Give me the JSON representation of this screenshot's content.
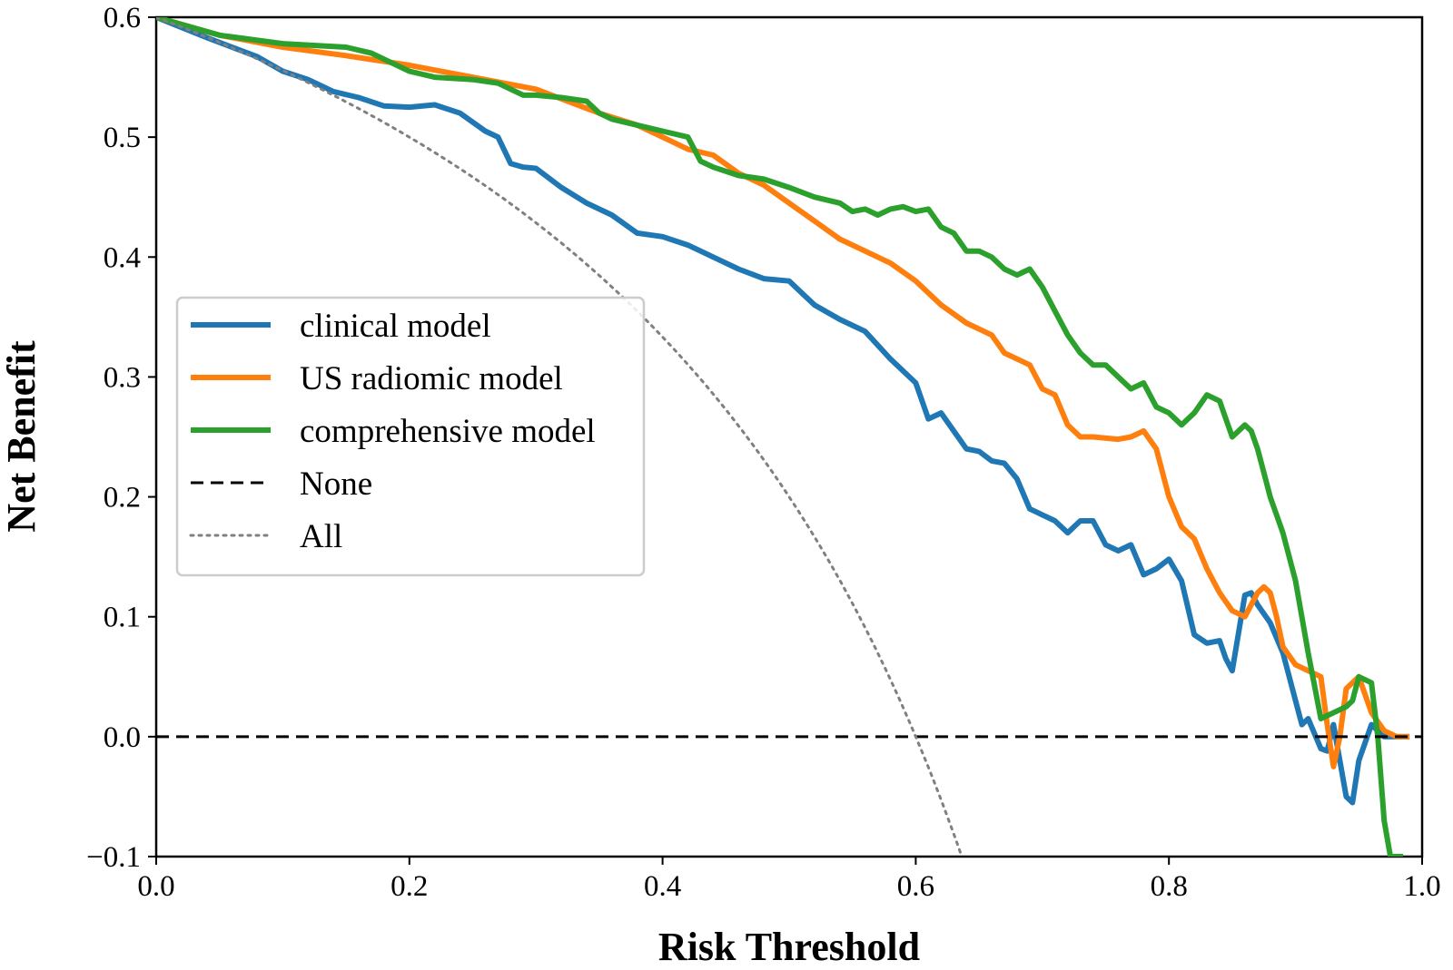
{
  "chart_data": {
    "type": "line",
    "title": "",
    "xlabel": "Risk Threshold",
    "ylabel": "Net Benefit",
    "xlim": [
      0.0,
      1.0
    ],
    "ylim": [
      -0.1,
      0.6
    ],
    "x_ticks": [
      "0.0",
      "0.2",
      "0.4",
      "0.6",
      "0.8",
      "1.0"
    ],
    "y_ticks": [
      "−0.1",
      "0.0",
      "0.1",
      "0.2",
      "0.3",
      "0.4",
      "0.5",
      "0.6"
    ],
    "legend_position": "center-left",
    "grid": false,
    "series": [
      {
        "name": "clinical model",
        "color": "#1f77b4",
        "style": "solid",
        "x": [
          0.0,
          0.04,
          0.08,
          0.1,
          0.12,
          0.14,
          0.16,
          0.18,
          0.2,
          0.22,
          0.24,
          0.26,
          0.27,
          0.28,
          0.29,
          0.3,
          0.32,
          0.34,
          0.36,
          0.38,
          0.4,
          0.42,
          0.44,
          0.46,
          0.48,
          0.5,
          0.52,
          0.54,
          0.56,
          0.58,
          0.6,
          0.61,
          0.62,
          0.63,
          0.64,
          0.65,
          0.66,
          0.67,
          0.68,
          0.69,
          0.7,
          0.71,
          0.72,
          0.73,
          0.74,
          0.75,
          0.76,
          0.77,
          0.78,
          0.79,
          0.8,
          0.81,
          0.82,
          0.83,
          0.84,
          0.845,
          0.85,
          0.86,
          0.865,
          0.87,
          0.88,
          0.89,
          0.9,
          0.905,
          0.91,
          0.92,
          0.925,
          0.93,
          0.94,
          0.945,
          0.95,
          0.96,
          0.965,
          0.97,
          0.98,
          0.985,
          0.99
        ],
        "values": [
          0.6,
          0.583,
          0.567,
          0.555,
          0.548,
          0.538,
          0.533,
          0.526,
          0.525,
          0.527,
          0.52,
          0.505,
          0.5,
          0.478,
          0.475,
          0.474,
          0.458,
          0.445,
          0.435,
          0.42,
          0.417,
          0.41,
          0.4,
          0.39,
          0.382,
          0.38,
          0.36,
          0.348,
          0.338,
          0.315,
          0.295,
          0.265,
          0.27,
          0.255,
          0.24,
          0.238,
          0.23,
          0.228,
          0.215,
          0.19,
          0.185,
          0.18,
          0.17,
          0.18,
          0.18,
          0.16,
          0.155,
          0.16,
          0.135,
          0.14,
          0.148,
          0.13,
          0.085,
          0.078,
          0.08,
          0.065,
          0.055,
          0.118,
          0.12,
          0.11,
          0.095,
          0.07,
          0.03,
          0.01,
          0.015,
          -0.01,
          -0.012,
          0.01,
          -0.05,
          -0.055,
          -0.02,
          0.01,
          0.005,
          0.0,
          0.0,
          0.0,
          0.0
        ]
      },
      {
        "name": "US radiomic model",
        "color": "#ff7f0e",
        "style": "solid",
        "x": [
          0.0,
          0.05,
          0.1,
          0.15,
          0.2,
          0.25,
          0.3,
          0.35,
          0.38,
          0.4,
          0.42,
          0.44,
          0.46,
          0.48,
          0.5,
          0.52,
          0.54,
          0.56,
          0.58,
          0.6,
          0.62,
          0.64,
          0.66,
          0.67,
          0.68,
          0.69,
          0.7,
          0.71,
          0.72,
          0.73,
          0.74,
          0.76,
          0.77,
          0.78,
          0.79,
          0.8,
          0.81,
          0.82,
          0.83,
          0.84,
          0.85,
          0.86,
          0.87,
          0.875,
          0.88,
          0.885,
          0.89,
          0.9,
          0.91,
          0.92,
          0.925,
          0.93,
          0.935,
          0.94,
          0.945,
          0.95,
          0.96,
          0.97,
          0.98,
          0.99
        ],
        "values": [
          0.6,
          0.585,
          0.575,
          0.568,
          0.56,
          0.55,
          0.54,
          0.52,
          0.51,
          0.5,
          0.49,
          0.485,
          0.47,
          0.46,
          0.445,
          0.43,
          0.415,
          0.405,
          0.395,
          0.38,
          0.36,
          0.345,
          0.335,
          0.32,
          0.315,
          0.31,
          0.29,
          0.285,
          0.26,
          0.25,
          0.25,
          0.248,
          0.25,
          0.255,
          0.24,
          0.2,
          0.175,
          0.165,
          0.14,
          0.12,
          0.105,
          0.1,
          0.12,
          0.125,
          0.12,
          0.1,
          0.075,
          0.06,
          0.055,
          0.05,
          0.01,
          -0.025,
          0.0,
          0.04,
          0.045,
          0.05,
          0.02,
          0.005,
          0.0,
          0.0
        ]
      },
      {
        "name": "comprehensive model",
        "color": "#2ca02c",
        "style": "solid",
        "x": [
          0.0,
          0.05,
          0.1,
          0.15,
          0.17,
          0.19,
          0.2,
          0.22,
          0.25,
          0.27,
          0.29,
          0.3,
          0.32,
          0.34,
          0.35,
          0.36,
          0.38,
          0.4,
          0.42,
          0.43,
          0.44,
          0.46,
          0.48,
          0.5,
          0.52,
          0.54,
          0.55,
          0.56,
          0.57,
          0.58,
          0.59,
          0.6,
          0.61,
          0.62,
          0.63,
          0.64,
          0.65,
          0.66,
          0.67,
          0.68,
          0.69,
          0.7,
          0.71,
          0.72,
          0.73,
          0.74,
          0.75,
          0.76,
          0.77,
          0.78,
          0.79,
          0.8,
          0.81,
          0.82,
          0.83,
          0.84,
          0.845,
          0.85,
          0.855,
          0.86,
          0.865,
          0.87,
          0.875,
          0.88,
          0.89,
          0.9,
          0.91,
          0.92,
          0.93,
          0.94,
          0.945,
          0.95,
          0.96,
          0.965,
          0.97,
          0.975,
          0.98,
          0.985
        ],
        "values": [
          0.6,
          0.585,
          0.578,
          0.575,
          0.57,
          0.56,
          0.555,
          0.55,
          0.548,
          0.545,
          0.535,
          0.535,
          0.533,
          0.53,
          0.52,
          0.515,
          0.51,
          0.505,
          0.5,
          0.48,
          0.475,
          0.468,
          0.465,
          0.458,
          0.45,
          0.445,
          0.438,
          0.44,
          0.435,
          0.44,
          0.442,
          0.438,
          0.44,
          0.425,
          0.42,
          0.405,
          0.405,
          0.4,
          0.39,
          0.385,
          0.39,
          0.375,
          0.355,
          0.335,
          0.32,
          0.31,
          0.31,
          0.3,
          0.29,
          0.295,
          0.275,
          0.27,
          0.26,
          0.27,
          0.285,
          0.28,
          0.265,
          0.25,
          0.255,
          0.26,
          0.255,
          0.24,
          0.22,
          0.2,
          0.17,
          0.13,
          0.07,
          0.015,
          0.02,
          0.025,
          0.03,
          0.05,
          0.045,
          0.0,
          -0.07,
          -0.1,
          -0.1,
          -0.1
        ]
      },
      {
        "name": "None",
        "color": "#000000",
        "style": "dashed",
        "x": [
          0.0,
          1.0
        ],
        "values": [
          0.0,
          0.0
        ]
      },
      {
        "name": "All",
        "color": "#808080",
        "style": "dotted",
        "formula": "0.6 - 0.4*t/(1-t)",
        "x_range": [
          0.0,
          0.6364
        ]
      }
    ]
  }
}
